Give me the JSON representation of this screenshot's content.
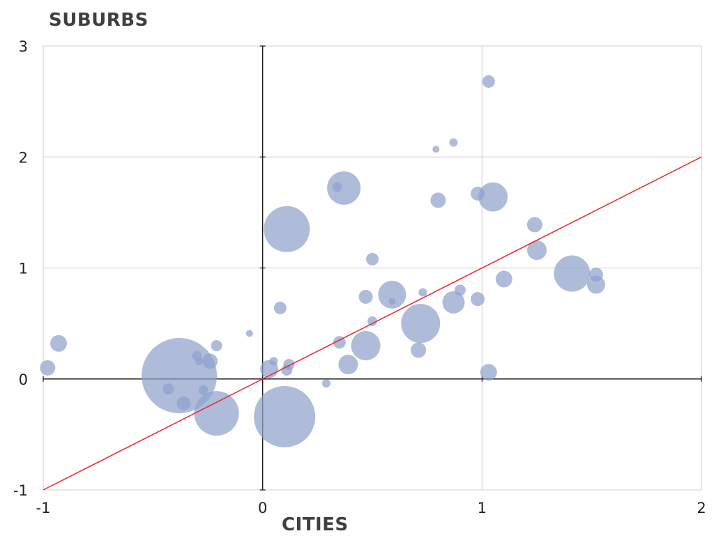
{
  "chart_data": {
    "type": "scatter",
    "xlabel": "CITIES",
    "ylabel": "SUBURBS",
    "xlim": [
      -1,
      2
    ],
    "ylim": [
      -1,
      3
    ],
    "x_ticks": [
      "-1",
      "0",
      "1",
      "2"
    ],
    "y_ticks": [
      "-1",
      "0",
      "1",
      "2",
      "3"
    ],
    "grid": true,
    "bubble_color": "#8fa2cc",
    "reference_line": {
      "from": [
        -1,
        -1
      ],
      "to": [
        2,
        2
      ],
      "color": "#e8262b"
    },
    "points": [
      {
        "x": -0.38,
        "y": 0.03,
        "r": 54
      },
      {
        "x": 0.1,
        "y": -0.34,
        "r": 44
      },
      {
        "x": 0.11,
        "y": 1.35,
        "r": 33
      },
      {
        "x": -0.21,
        "y": -0.31,
        "r": 32
      },
      {
        "x": 0.72,
        "y": 0.5,
        "r": 28
      },
      {
        "x": 1.41,
        "y": 0.95,
        "r": 26
      },
      {
        "x": 0.37,
        "y": 1.72,
        "r": 24
      },
      {
        "x": 1.05,
        "y": 1.64,
        "r": 21
      },
      {
        "x": 0.47,
        "y": 0.3,
        "r": 21
      },
      {
        "x": 0.59,
        "y": 0.76,
        "r": 20
      },
      {
        "x": 0.87,
        "y": 0.69,
        "r": 16
      },
      {
        "x": 0.39,
        "y": 0.13,
        "r": 14
      },
      {
        "x": 1.25,
        "y": 1.16,
        "r": 14
      },
      {
        "x": -0.93,
        "y": 0.32,
        "r": 12
      },
      {
        "x": 1.1,
        "y": 0.9,
        "r": 12
      },
      {
        "x": 1.52,
        "y": 0.85,
        "r": 13
      },
      {
        "x": 0.03,
        "y": 0.09,
        "r": 13
      },
      {
        "x": -0.98,
        "y": 0.1,
        "r": 11
      },
      {
        "x": -0.24,
        "y": 0.16,
        "r": 11
      },
      {
        "x": 0.71,
        "y": 0.26,
        "r": 11
      },
      {
        "x": 1.03,
        "y": 0.06,
        "r": 12
      },
      {
        "x": 0.8,
        "y": 1.61,
        "r": 11
      },
      {
        "x": 1.24,
        "y": 1.39,
        "r": 11
      },
      {
        "x": 0.47,
        "y": 0.74,
        "r": 10
      },
      {
        "x": 0.98,
        "y": 1.67,
        "r": 10
      },
      {
        "x": 1.52,
        "y": 0.94,
        "r": 10
      },
      {
        "x": -0.36,
        "y": -0.22,
        "r": 10
      },
      {
        "x": 0.98,
        "y": 0.72,
        "r": 10
      },
      {
        "x": 1.03,
        "y": 2.68,
        "r": 9
      },
      {
        "x": 0.35,
        "y": 0.33,
        "r": 9
      },
      {
        "x": 0.5,
        "y": 1.08,
        "r": 9
      },
      {
        "x": 0.08,
        "y": 0.64,
        "r": 9
      },
      {
        "x": -0.21,
        "y": 0.3,
        "r": 8
      },
      {
        "x": 0.9,
        "y": 0.8,
        "r": 8
      },
      {
        "x": 0.12,
        "y": 0.13,
        "r": 8
      },
      {
        "x": 0.11,
        "y": 0.08,
        "r": 8
      },
      {
        "x": -0.43,
        "y": -0.09,
        "r": 8
      },
      {
        "x": -0.3,
        "y": 0.21,
        "r": 7
      },
      {
        "x": -0.27,
        "y": -0.1,
        "r": 7
      },
      {
        "x": 0.5,
        "y": 0.52,
        "r": 7
      },
      {
        "x": -0.29,
        "y": 0.16,
        "r": 6
      },
      {
        "x": 0.87,
        "y": 2.13,
        "r": 6
      },
      {
        "x": 0.79,
        "y": 2.07,
        "r": 5
      },
      {
        "x": 0.73,
        "y": 0.78,
        "r": 6
      },
      {
        "x": 0.05,
        "y": 0.16,
        "r": 6
      },
      {
        "x": 0.29,
        "y": -0.04,
        "r": 6
      },
      {
        "x": -0.06,
        "y": 0.41,
        "r": 5
      },
      {
        "x": 0.59,
        "y": 0.7,
        "r": 5
      },
      {
        "x": 0.34,
        "y": 1.73,
        "r": 7
      }
    ]
  }
}
